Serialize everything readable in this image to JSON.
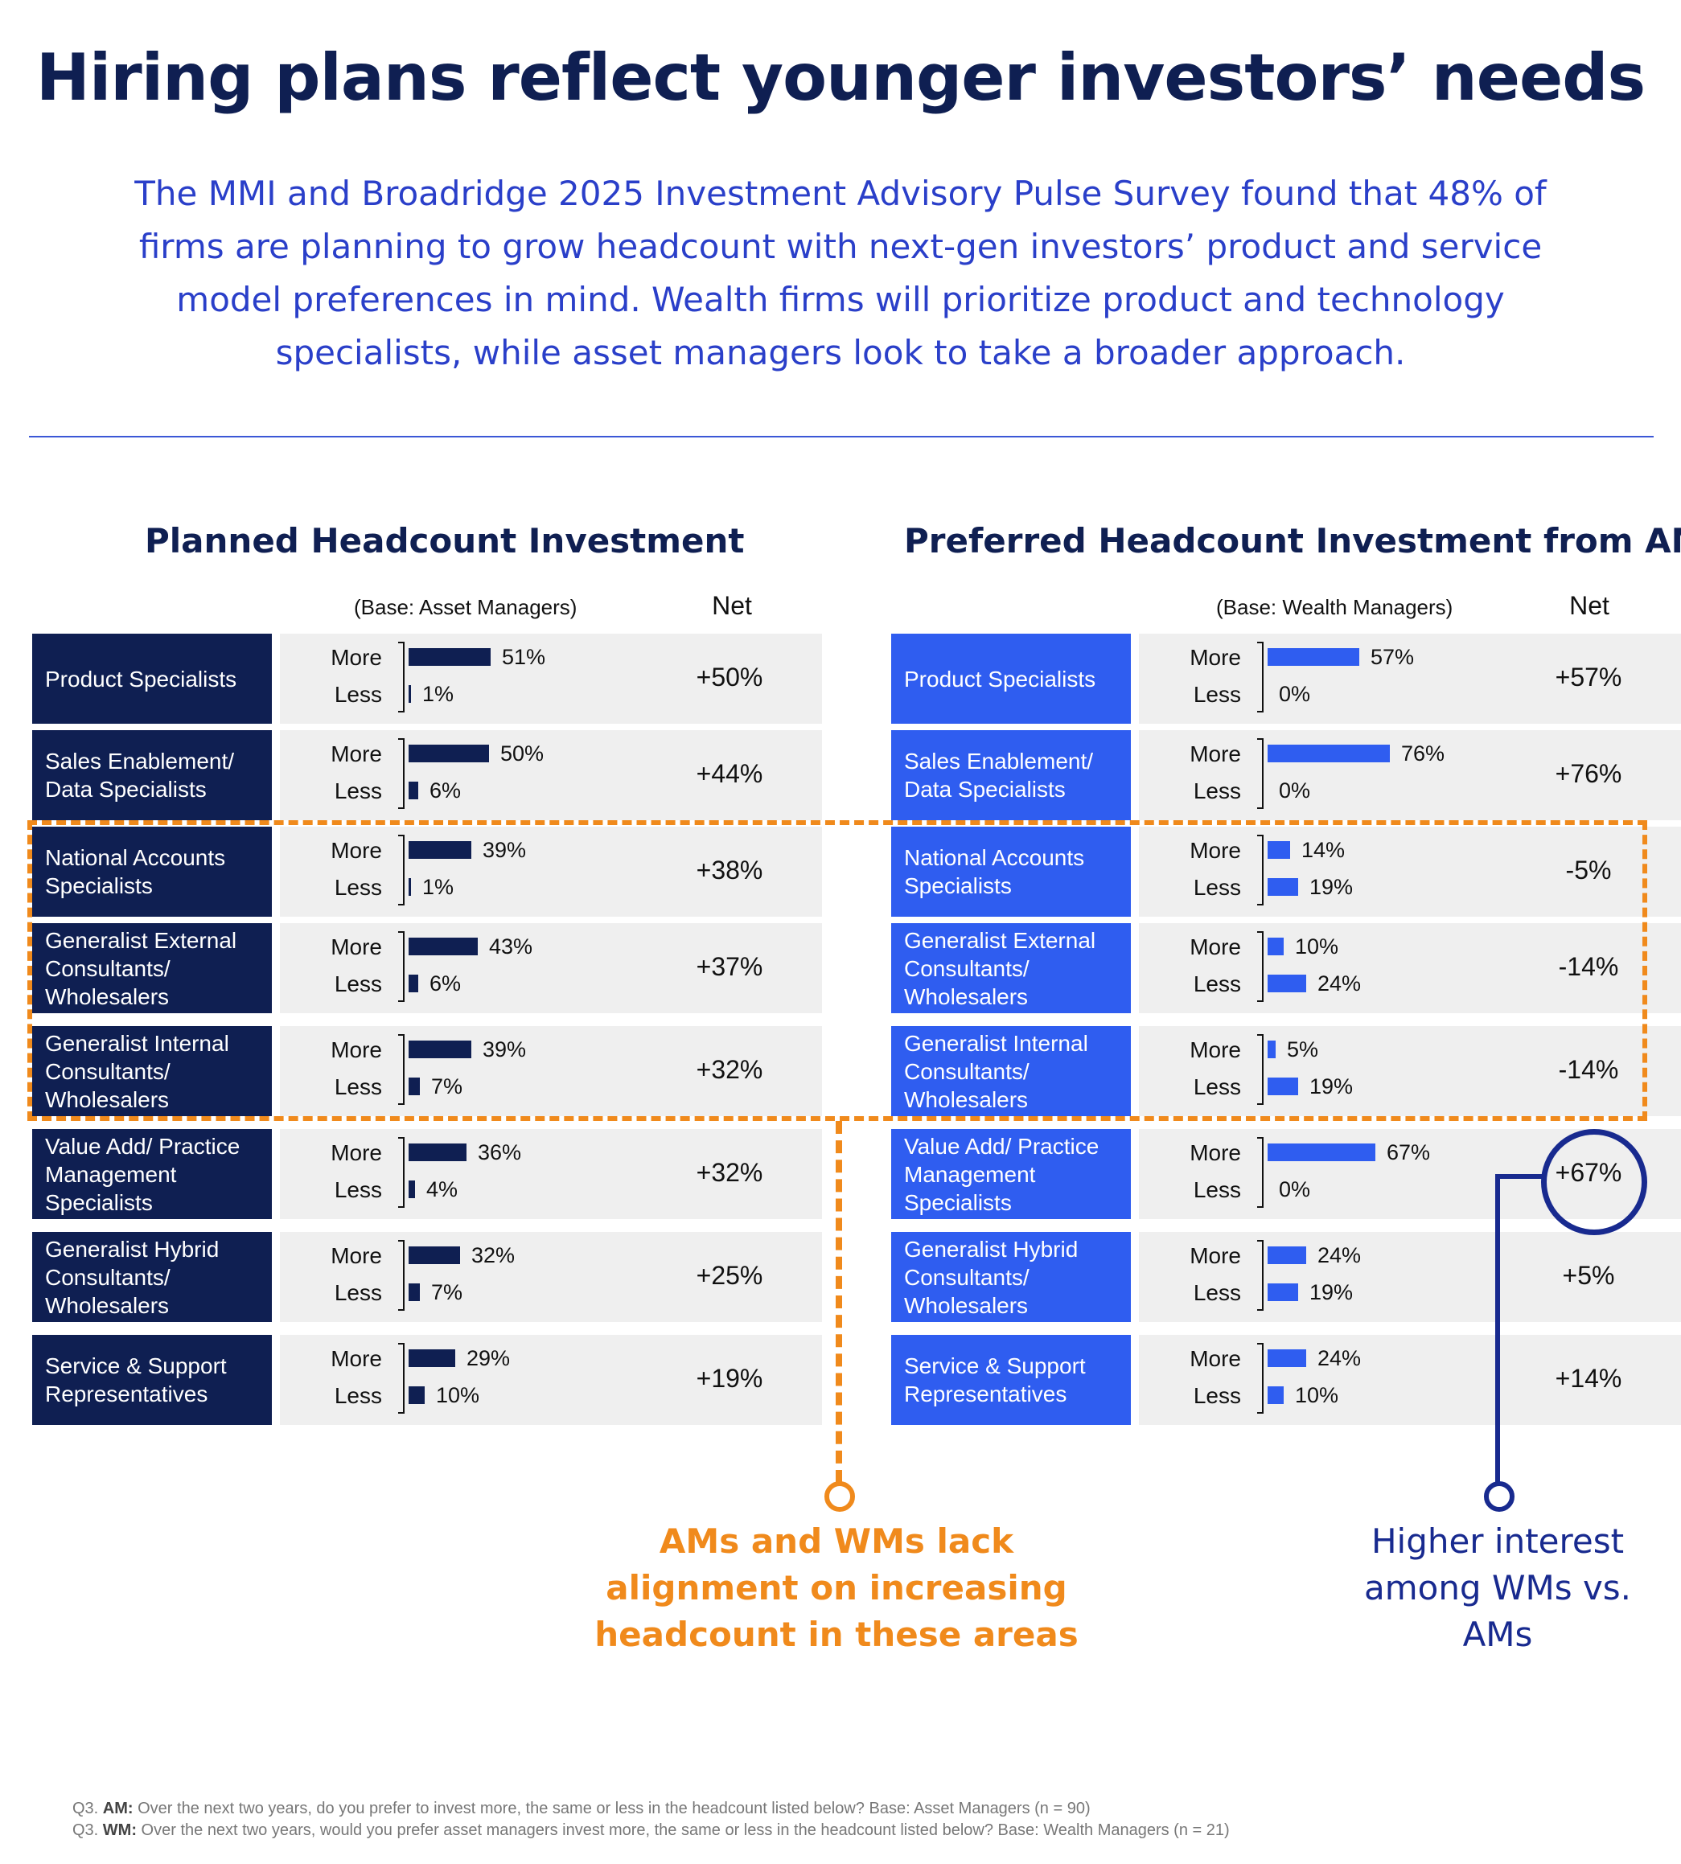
{
  "title": "Hiring plans reflect younger investors’ needs",
  "subtitle": "The MMI and Broadridge 2025 Investment Advisory Pulse Survey found that 48% of firms are planning to grow headcount with next-gen investors’ product and service model preferences in mind. Wealth firms will prioritize product and technology specialists, while asset managers look to take a broader approach.",
  "more_label": "More",
  "less_label": "Less",
  "net_header": "Net",
  "callouts": {
    "orange": "AMs and WMs lack alignment on increasing headcount in these areas",
    "blue": "Higher interest among WMs vs. AMs"
  },
  "footnotes": {
    "am_prefix": "Q3. ",
    "am_key": "AM:",
    "am_text": " Over the next two years, do you prefer to invest more, the same or less in the headcount listed below? Base: Asset Managers (n = 90)",
    "wm_prefix": "Q3. ",
    "wm_key": "WM:",
    "wm_text": " Over the next two years, would you prefer asset managers invest more, the same or less in the headcount listed below? Base: Wealth Managers (n = 21)"
  },
  "colors": {
    "am_dark": "#0f1f52",
    "wm_blue": "#2f5df0",
    "orange": "#f08a1c",
    "circle_blue": "#182a8f"
  },
  "chart_data": [
    {
      "type": "bar",
      "title": "Planned Headcount Investment",
      "base": "(Base: Asset Managers)",
      "categories": [
        "Product Specialists",
        "Sales Enablement/\nData Specialists",
        "National Accounts\nSpecialists",
        "Generalist External\nConsultants/\nWholesalers",
        "Generalist Internal\nConsultants/\nWholesalers",
        "Value Add/ Practice\nManagement\nSpecialists",
        "Generalist Hybrid\nConsultants/\nWholesalers",
        "Service & Support\nRepresentatives"
      ],
      "series": [
        {
          "name": "More",
          "values": [
            51,
            50,
            39,
            43,
            39,
            36,
            32,
            29
          ]
        },
        {
          "name": "Less",
          "values": [
            1,
            6,
            1,
            6,
            7,
            4,
            7,
            10
          ]
        }
      ],
      "net": [
        "+50%",
        "+44%",
        "+38%",
        "+37%",
        "+32%",
        "+32%",
        "+25%",
        "+19%"
      ],
      "ylim": [
        0,
        76
      ]
    },
    {
      "type": "bar",
      "title": "Preferred Headcount Investment from AMs",
      "base": "(Base: Wealth Managers)",
      "categories": [
        "Product Specialists",
        "Sales Enablement/\nData Specialists",
        "National Accounts\nSpecialists",
        "Generalist External\nConsultants/\nWholesalers",
        "Generalist Internal\nConsultants/\nWholesalers",
        "Value Add/ Practice\nManagement\nSpecialists",
        "Generalist Hybrid\nConsultants/\nWholesalers",
        "Service & Support\nRepresentatives"
      ],
      "series": [
        {
          "name": "More",
          "values": [
            57,
            76,
            14,
            10,
            5,
            67,
            24,
            24
          ]
        },
        {
          "name": "Less",
          "values": [
            0,
            0,
            19,
            24,
            19,
            0,
            19,
            10
          ]
        }
      ],
      "net": [
        "+57%",
        "+76%",
        "-5%",
        "-14%",
        "-14%",
        "+67%",
        "+5%",
        "+14%"
      ],
      "ylim": [
        0,
        76
      ]
    }
  ]
}
